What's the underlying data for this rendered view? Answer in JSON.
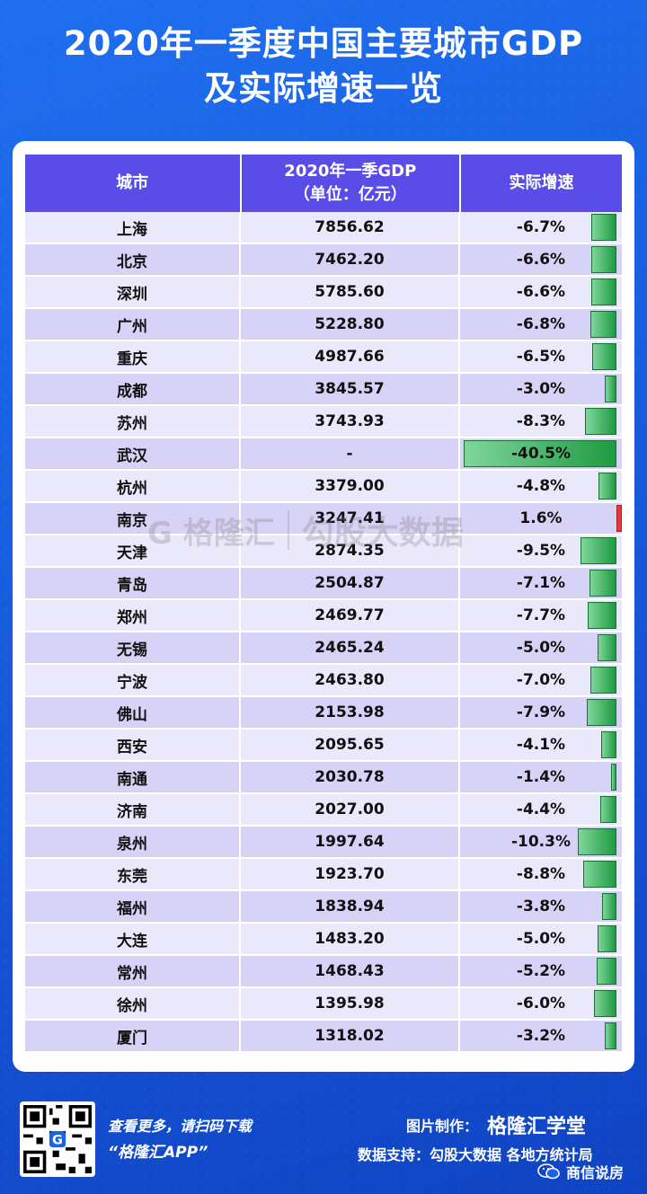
{
  "title": {
    "line1": "2020年一季度中国主要城市GDP",
    "line2": "及实际增速一览"
  },
  "table": {
    "headers": {
      "city": "城市",
      "gdp_line1": "2020年一季GDP",
      "gdp_line2": "（单位：亿元）",
      "growth": "实际增速"
    },
    "rows": [
      {
        "city": "上海",
        "gdp": "7856.62",
        "growth": "-6.7%",
        "growth_value": -6.7
      },
      {
        "city": "北京",
        "gdp": "7462.20",
        "growth": "-6.6%",
        "growth_value": -6.6
      },
      {
        "city": "深圳",
        "gdp": "5785.60",
        "growth": "-6.6%",
        "growth_value": -6.6
      },
      {
        "city": "广州",
        "gdp": "5228.80",
        "growth": "-6.8%",
        "growth_value": -6.8
      },
      {
        "city": "重庆",
        "gdp": "4987.66",
        "growth": "-6.5%",
        "growth_value": -6.5
      },
      {
        "city": "成都",
        "gdp": "3845.57",
        "growth": "-3.0%",
        "growth_value": -3.0
      },
      {
        "city": "苏州",
        "gdp": "3743.93",
        "growth": "-8.3%",
        "growth_value": -8.3
      },
      {
        "city": "武汉",
        "gdp": "-",
        "growth": "-40.5%",
        "growth_value": -40.5
      },
      {
        "city": "杭州",
        "gdp": "3379.00",
        "growth": "-4.8%",
        "growth_value": -4.8
      },
      {
        "city": "南京",
        "gdp": "3247.41",
        "growth": "1.6%",
        "growth_value": 1.6
      },
      {
        "city": "天津",
        "gdp": "2874.35",
        "growth": "-9.5%",
        "growth_value": -9.5
      },
      {
        "city": "青岛",
        "gdp": "2504.87",
        "growth": "-7.1%",
        "growth_value": -7.1
      },
      {
        "city": "郑州",
        "gdp": "2469.77",
        "growth": "-7.7%",
        "growth_value": -7.7
      },
      {
        "city": "无锡",
        "gdp": "2465.24",
        "growth": "-5.0%",
        "growth_value": -5.0
      },
      {
        "city": "宁波",
        "gdp": "2463.80",
        "growth": "-7.0%",
        "growth_value": -7.0
      },
      {
        "city": "佛山",
        "gdp": "2153.98",
        "growth": "-7.9%",
        "growth_value": -7.9
      },
      {
        "city": "西安",
        "gdp": "2095.65",
        "growth": "-4.1%",
        "growth_value": -4.1
      },
      {
        "city": "南通",
        "gdp": "2030.78",
        "growth": "-1.4%",
        "growth_value": -1.4
      },
      {
        "city": "济南",
        "gdp": "2027.00",
        "growth": "-4.4%",
        "growth_value": -4.4
      },
      {
        "city": "泉州",
        "gdp": "1997.64",
        "growth": "-10.3%",
        "growth_value": -10.3
      },
      {
        "city": "东莞",
        "gdp": "1923.70",
        "growth": "-8.8%",
        "growth_value": -8.8
      },
      {
        "city": "福州",
        "gdp": "1838.94",
        "growth": "-3.8%",
        "growth_value": -3.8
      },
      {
        "city": "大连",
        "gdp": "1483.20",
        "growth": "-5.0%",
        "growth_value": -5.0
      },
      {
        "city": "常州",
        "gdp": "1468.43",
        "growth": "-5.2%",
        "growth_value": -5.2
      },
      {
        "city": "徐州",
        "gdp": "1395.98",
        "growth": "-6.0%",
        "growth_value": -6.0
      },
      {
        "city": "厦门",
        "gdp": "1318.02",
        "growth": "-3.2%",
        "growth_value": -3.2
      }
    ]
  },
  "watermark": {
    "logo": "G 格隆汇",
    "text": "勾股大数据"
  },
  "footer": {
    "more_text": "查看更多，请扫码下载",
    "app_name": "“格隆汇APP”",
    "made_by_label": "图片制作：",
    "brand": "格隆汇学堂",
    "data_support": "数据支持：勾股大数据  各地方统计局",
    "wechat_account": "商信说房"
  },
  "colors": {
    "header_bg": "#5a4ce6",
    "row_odd": "#eae8fb",
    "row_even": "#d7d3f6",
    "bar_negative": "#1f9a42",
    "bar_positive": "#e23b3b",
    "page_bg": "#1a63e6"
  }
}
